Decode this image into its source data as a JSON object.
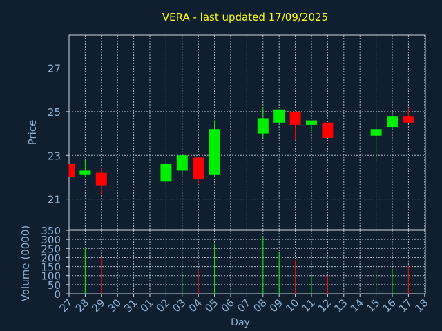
{
  "title": "VERA - last updated 17/09/2025",
  "chart_data": [
    {
      "type": "candlestick",
      "ylabel": "Price",
      "ylim": [
        19.6,
        28.5
      ],
      "yticks": [
        21,
        23,
        25,
        27
      ],
      "grid": true,
      "colors": {
        "up": "#00ee00",
        "down": "#ff0000"
      },
      "x": [
        "27",
        "28",
        "29",
        "30",
        "31",
        "01",
        "02",
        "03",
        "04",
        "05",
        "06",
        "07",
        "08",
        "09",
        "10",
        "11",
        "12",
        "13",
        "14",
        "15",
        "16",
        "17",
        "18"
      ],
      "candles": [
        {
          "day": "27",
          "open": 22.6,
          "close": 22.0,
          "high": 22.6,
          "low": 22.0
        },
        {
          "day": "28",
          "open": 22.1,
          "close": 22.3,
          "high": 22.8,
          "low": 22.0
        },
        {
          "day": "29",
          "open": 22.2,
          "close": 21.6,
          "high": 22.4,
          "low": 21.2
        },
        {
          "day": "02",
          "open": 21.8,
          "close": 22.6,
          "high": 22.8,
          "low": 21.6
        },
        {
          "day": "03",
          "open": 22.3,
          "close": 23.0,
          "high": 23.0,
          "low": 22.0
        },
        {
          "day": "04",
          "open": 22.9,
          "close": 21.9,
          "high": 22.9,
          "low": 21.7
        },
        {
          "day": "05",
          "open": 22.1,
          "close": 24.2,
          "high": 24.6,
          "low": 22.0
        },
        {
          "day": "08",
          "open": 24.0,
          "close": 24.7,
          "high": 25.2,
          "low": 23.8
        },
        {
          "day": "09",
          "open": 24.5,
          "close": 25.1,
          "high": 25.1,
          "low": 24.4
        },
        {
          "day": "10",
          "open": 25.0,
          "close": 24.4,
          "high": 25.0,
          "low": 23.7
        },
        {
          "day": "11",
          "open": 24.4,
          "close": 24.6,
          "high": 24.6,
          "low": 24.1
        },
        {
          "day": "12",
          "open": 24.5,
          "close": 23.8,
          "high": 24.5,
          "low": 23.8
        },
        {
          "day": "15",
          "open": 23.9,
          "close": 24.2,
          "high": 24.7,
          "low": 22.7
        },
        {
          "day": "16",
          "open": 24.3,
          "close": 24.8,
          "high": 24.9,
          "low": 24.2
        },
        {
          "day": "17",
          "open": 24.8,
          "close": 24.5,
          "high": 25.2,
          "low": 24.5
        }
      ]
    },
    {
      "type": "bar",
      "ylabel": "Volume (0000)",
      "xlabel": "Day",
      "ylim": [
        0,
        350
      ],
      "yticks": [
        0,
        50,
        100,
        150,
        200,
        250,
        300,
        350
      ],
      "grid": true,
      "categories": [
        "27",
        "28",
        "29",
        "30",
        "31",
        "01",
        "02",
        "03",
        "04",
        "05",
        "06",
        "07",
        "08",
        "09",
        "10",
        "11",
        "12",
        "13",
        "14",
        "15",
        "16",
        "17",
        "18"
      ],
      "bars": [
        {
          "day": "28",
          "value": 250,
          "color": "#00ee00"
        },
        {
          "day": "29",
          "value": 205,
          "color": "#ff0000"
        },
        {
          "day": "02",
          "value": 245,
          "color": "#00ee00"
        },
        {
          "day": "03",
          "value": 125,
          "color": "#00ee00"
        },
        {
          "day": "04",
          "value": 135,
          "color": "#ff0000"
        },
        {
          "day": "05",
          "value": 275,
          "color": "#00ee00"
        },
        {
          "day": "08",
          "value": 315,
          "color": "#00ee00"
        },
        {
          "day": "09",
          "value": 230,
          "color": "#00ee00"
        },
        {
          "day": "10",
          "value": 185,
          "color": "#ff0000"
        },
        {
          "day": "11",
          "value": 100,
          "color": "#00ee00"
        },
        {
          "day": "12",
          "value": 100,
          "color": "#ff0000"
        },
        {
          "day": "15",
          "value": 145,
          "color": "#00ee00"
        },
        {
          "day": "16",
          "value": 130,
          "color": "#00ee00"
        },
        {
          "day": "17",
          "value": 155,
          "color": "#ff0000"
        }
      ]
    }
  ]
}
